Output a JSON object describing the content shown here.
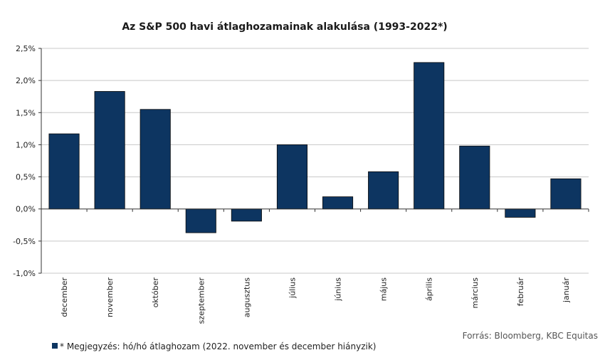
{
  "chart_data": {
    "type": "bar",
    "title": "Az S&P 500 havi átlaghozamainak alakulása (1993-2022*)",
    "categories": [
      "december",
      "november",
      "október",
      "szeptember",
      "augusztus",
      "július",
      "június",
      "május",
      "április",
      "március",
      "február",
      "január"
    ],
    "values": [
      1.17,
      1.83,
      1.55,
      -0.37,
      -0.19,
      1.0,
      0.19,
      0.58,
      2.28,
      0.98,
      -0.13,
      0.47
    ],
    "ylim": [
      -1.0,
      2.5
    ],
    "yticks": [
      2.5,
      2.0,
      1.5,
      1.0,
      0.5,
      0.0,
      -0.5,
      -1.0
    ],
    "ytick_labels": [
      "2,5%",
      "2,0%",
      "1,5%",
      "1,0%",
      "0,5%",
      "0,0%",
      "-0,5%",
      "-1,0%"
    ],
    "grid": true,
    "bar_color": "#0d3561",
    "legend_text": "* Megjegyzés: hó/hó átlaghozam (2022. november és december hiányzik)",
    "legend_placement": "bottom-left",
    "source": "Forrás: Bloomberg, KBC Equitas"
  }
}
